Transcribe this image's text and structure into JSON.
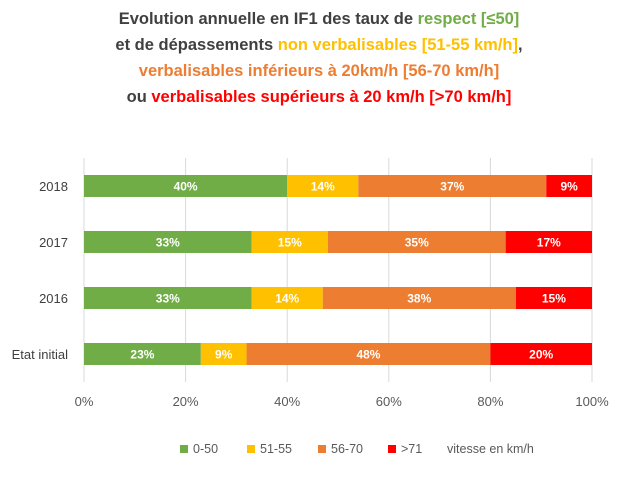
{
  "colors": {
    "green": "#70ad47",
    "yellow": "#ffc000",
    "orange": "#ed7d31",
    "red": "#ff0000",
    "title_dark": "#404040"
  },
  "title_lines": [
    [
      {
        "text": "Evolution annuelle en IF1 des taux de ",
        "color": "#404040"
      },
      {
        "text": "respect [≤50]",
        "color": "#70ad47"
      }
    ],
    [
      {
        "text": "et de dépassements ",
        "color": "#404040"
      },
      {
        "text": "non verbalisables [51-55 km/h]",
        "color": "#ffc000"
      },
      {
        "text": ",",
        "color": "#404040"
      }
    ],
    [
      {
        "text": "verbalisables inférieurs à 20km/h [56-70 km/h]",
        "color": "#ed7d31"
      }
    ],
    [
      {
        "text": "ou ",
        "color": "#404040"
      },
      {
        "text": "verbalisables supérieurs à 20 km/h [>70 km/h]",
        "color": "#ff0000"
      }
    ]
  ],
  "legend": {
    "items": [
      "0-50",
      "51-55",
      "56-70",
      ">71"
    ],
    "note": "vitesse en km/h"
  },
  "chart_data": {
    "type": "bar",
    "orientation": "horizontal",
    "stacked": "percent",
    "title": "Evolution annuelle en IF1 des taux de respect [≤50] et de dépassements non verbalisables [51-55 km/h], verbalisables inférieurs à 20km/h [56-70 km/h] ou verbalisables supérieurs à 20 km/h [>70 km/h]",
    "categories": [
      "2018",
      "2017",
      "2016",
      "Etat initial"
    ],
    "series": [
      {
        "name": "0-50",
        "color": "#70ad47",
        "values": [
          40,
          33,
          33,
          23
        ],
        "labels": [
          "40%",
          "33%",
          "33%",
          "23%"
        ]
      },
      {
        "name": "51-55",
        "color": "#ffc000",
        "values": [
          14,
          15,
          14,
          9
        ],
        "labels": [
          "14%",
          "15%",
          "14%",
          "9%"
        ]
      },
      {
        "name": "56-70",
        "color": "#ed7d31",
        "values": [
          37,
          35,
          38,
          48
        ],
        "labels": [
          "37%",
          "35%",
          "38%",
          "48%"
        ]
      },
      {
        "name": ">71",
        "color": "#ff0000",
        "values": [
          9,
          17,
          15,
          20
        ],
        "labels": [
          "9%",
          "17%",
          "15%",
          "20%"
        ]
      }
    ],
    "xlim": [
      0,
      100
    ],
    "xticks": [
      "0%",
      "20%",
      "40%",
      "60%",
      "80%",
      "100%"
    ],
    "xlabel": "",
    "ylabel": "",
    "grid": true,
    "legend_position": "bottom"
  }
}
